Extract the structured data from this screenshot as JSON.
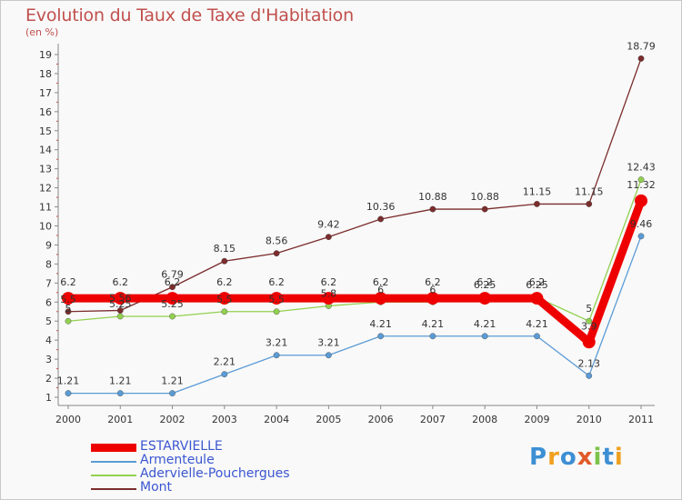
{
  "header": {
    "title": "Evolution du Taux de Taxe d'Habitation",
    "subtitle": "(en %)"
  },
  "logo": {
    "text": "Proxiti",
    "letters": [
      {
        "ch": "P",
        "color": "#3d8fd4"
      },
      {
        "ch": "r",
        "color": "#f0a020"
      },
      {
        "ch": "o",
        "color": "#3d8fd4"
      },
      {
        "ch": "x",
        "color": "#e05a2a"
      },
      {
        "ch": "i",
        "color": "#7cc34a"
      },
      {
        "ch": "t",
        "color": "#3d8fd4"
      },
      {
        "ch": "i",
        "color": "#f0a020"
      }
    ]
  },
  "chart_data": {
    "type": "line",
    "title": "Evolution du Taux de Taxe d'Habitation",
    "ylabel": "(en %)",
    "xlabel": "",
    "x": [
      "2000",
      "2001",
      "2002",
      "2003",
      "2004",
      "2005",
      "2006",
      "2007",
      "2008",
      "2009",
      "2010",
      "2011"
    ],
    "yticks": [
      1,
      2,
      3,
      4,
      5,
      6,
      7,
      8,
      9,
      10,
      11,
      12,
      13,
      14,
      15,
      16,
      17,
      18,
      19
    ],
    "ylim": [
      1,
      19.7
    ],
    "grid": false,
    "legend_position": "bottom-left",
    "series": [
      {
        "name": "ESTARVIELLE",
        "color": "#ee0000",
        "values": [
          6.2,
          6.2,
          6.2,
          6.2,
          6.2,
          6.2,
          6.2,
          6.2,
          6.2,
          6.2,
          3.9,
          11.32
        ],
        "labels": [
          "6.2",
          "6.2",
          "6.2",
          "6.2",
          "6.2",
          "6.2",
          "6.2",
          "6.2",
          "6.2",
          "6.2",
          "3.9",
          "11.32"
        ]
      },
      {
        "name": "Armenteule",
        "color": "#5b9bd5",
        "values": [
          1.21,
          1.21,
          1.21,
          2.21,
          3.21,
          3.21,
          4.21,
          4.21,
          4.21,
          4.21,
          2.13,
          9.46
        ],
        "labels": [
          "1.21",
          "1.21",
          "1.21",
          "2.21",
          "3.21",
          "3.21",
          "4.21",
          "4.21",
          "4.21",
          "4.21",
          "2.13",
          "9.46"
        ]
      },
      {
        "name": "Adervielle-Pouchergues",
        "color": "#92d050",
        "values": [
          5,
          5.25,
          5.25,
          5.5,
          5.5,
          5.8,
          6,
          6,
          6.25,
          6.25,
          5,
          12.43
        ],
        "labels": [
          "5",
          "5.25",
          "5.25",
          "5.5",
          "5.5",
          "5.8",
          "6",
          "6",
          "6.25",
          "6.25",
          "5",
          "12.43"
        ]
      },
      {
        "name": "Mont",
        "color": "#7b2c2c",
        "values": [
          5.5,
          5.56,
          6.79,
          8.15,
          8.56,
          9.42,
          10.36,
          10.88,
          10.88,
          11.15,
          11.15,
          18.79
        ],
        "labels": [
          "5.5",
          "5.56",
          "6.79",
          "8.15",
          "8.56",
          "9.42",
          "10.36",
          "10.88",
          "10.88",
          "11.15",
          "11.15",
          "18.79"
        ]
      }
    ]
  }
}
